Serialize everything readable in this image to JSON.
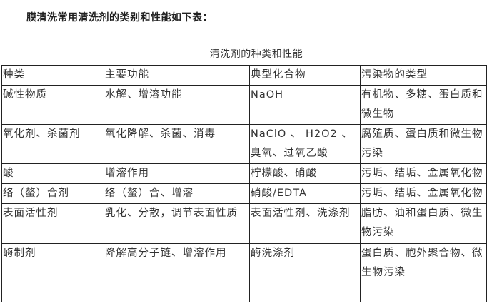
{
  "heading": "膜清洗常用清洗剂的类别和性能如下表：",
  "table": {
    "caption": "清洗剂的种类和性能",
    "headers": [
      "种类",
      "主要功能",
      "典型化合物",
      "污染物的类型"
    ],
    "rows": [
      [
        "碱性物质",
        "水解、增溶功能",
        "NaOH",
        "有机物、多糖、蛋白质和微生物"
      ],
      [
        "氧化剂、杀菌剂",
        "氧化降解、杀菌、消毒",
        "NaClO 、 H2O2 、 臭氧、过氧乙酸",
        "腐殖质、蛋白质和微生物污染"
      ],
      [
        "酸",
        "增溶作用",
        "柠檬酸、硝酸",
        "污垢、结垢、金属氧化物"
      ],
      [
        "络（螯）合剂",
        "络（螯）合、增溶",
        "硝酸/EDTA",
        "污垢、结垢、金属氧化物"
      ],
      [
        "表面活性剂",
        "乳化、分散，调节表面性质",
        "表面活性剂、洗涤剂",
        "脂肪、油和蛋白质、微生物污染"
      ],
      [
        "酶制剂",
        "降解高分子链、增溶作用",
        "酶洗涤剂",
        "蛋白质、胞外聚合物、微生物污染"
      ]
    ]
  }
}
